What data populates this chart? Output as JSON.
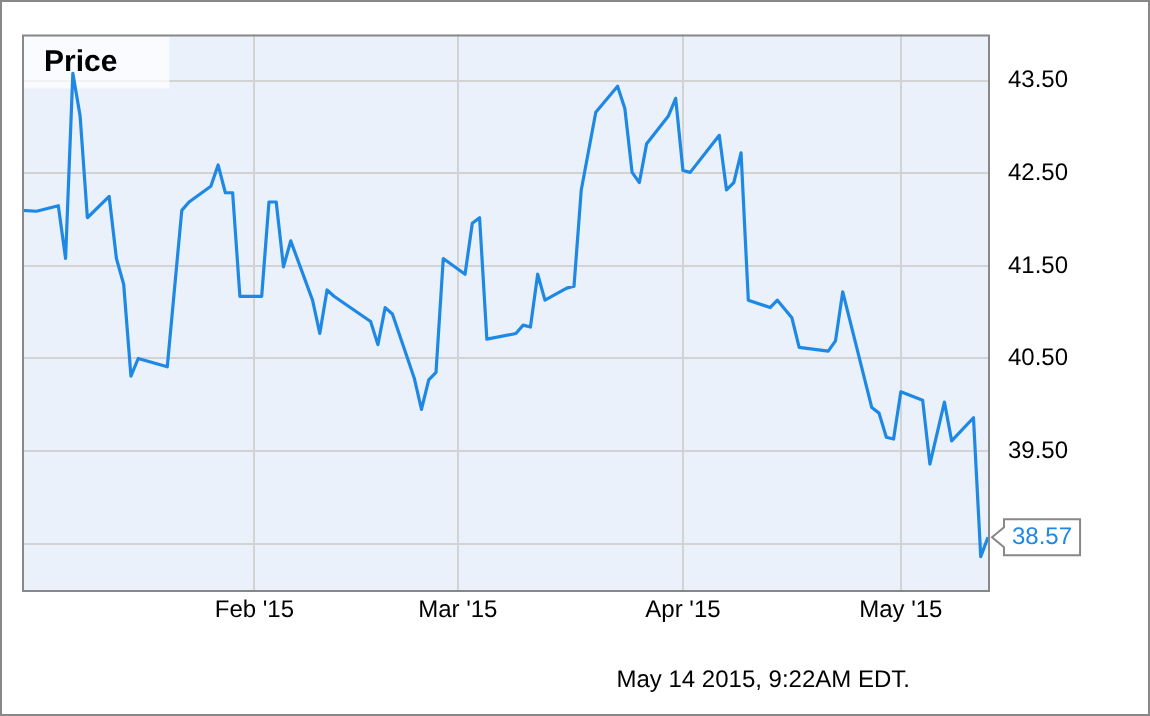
{
  "chart_data": {
    "type": "line",
    "title": "Price",
    "x": [
      "2014-12-31",
      "2015-01-02",
      "2015-01-05",
      "2015-01-06",
      "2015-01-07",
      "2015-01-08",
      "2015-01-09",
      "2015-01-12",
      "2015-01-13",
      "2015-01-14",
      "2015-01-15",
      "2015-01-16",
      "2015-01-20",
      "2015-01-22",
      "2015-01-23",
      "2015-01-26",
      "2015-01-27",
      "2015-01-28",
      "2015-01-29",
      "2015-01-30",
      "2015-02-02",
      "2015-02-03",
      "2015-02-04",
      "2015-02-05",
      "2015-02-06",
      "2015-02-09",
      "2015-02-10",
      "2015-02-11",
      "2015-02-12",
      "2015-02-17",
      "2015-02-18",
      "2015-02-19",
      "2015-02-20",
      "2015-02-23",
      "2015-02-24",
      "2015-02-25",
      "2015-02-26",
      "2015-02-27",
      "2015-03-02",
      "2015-03-03",
      "2015-03-04",
      "2015-03-05",
      "2015-03-09",
      "2015-03-10",
      "2015-03-11",
      "2015-03-12",
      "2015-03-13",
      "2015-03-16",
      "2015-03-17",
      "2015-03-18",
      "2015-03-20",
      "2015-03-23",
      "2015-03-24",
      "2015-03-25",
      "2015-03-26",
      "2015-03-27",
      "2015-03-30",
      "2015-03-31",
      "2015-04-01",
      "2015-04-02",
      "2015-04-06",
      "2015-04-07",
      "2015-04-08",
      "2015-04-09",
      "2015-04-10",
      "2015-04-13",
      "2015-04-14",
      "2015-04-16",
      "2015-04-17",
      "2015-04-21",
      "2015-04-22",
      "2015-04-23",
      "2015-04-27",
      "2015-04-28",
      "2015-04-29",
      "2015-04-30",
      "2015-05-01",
      "2015-05-04",
      "2015-05-05",
      "2015-05-07",
      "2015-05-08",
      "2015-05-11",
      "2015-05-12",
      "2015-05-13"
    ],
    "series": [
      {
        "color": "#1e88e5",
        "values": [
          42.1,
          42.09,
          42.15,
          41.58,
          43.58,
          43.12,
          42.02,
          42.25,
          41.58,
          41.3,
          40.31,
          40.5,
          40.41,
          42.1,
          42.19,
          42.36,
          42.59,
          42.29,
          42.29,
          41.17,
          41.17,
          42.19,
          42.19,
          41.49,
          41.77,
          41.13,
          40.77,
          41.24,
          41.17,
          40.9,
          40.65,
          41.05,
          40.98,
          40.29,
          39.95,
          40.27,
          40.35,
          41.58,
          41.41,
          41.96,
          42.02,
          40.71,
          40.77,
          40.86,
          40.84,
          41.41,
          41.13,
          41.26,
          41.28,
          42.32,
          43.16,
          43.44,
          43.2,
          42.51,
          42.4,
          42.82,
          43.12,
          43.31,
          42.53,
          42.51,
          42.91,
          42.32,
          42.4,
          42.72,
          41.13,
          41.05,
          41.13,
          40.94,
          40.62,
          40.58,
          40.69,
          41.22,
          39.97,
          39.91,
          39.65,
          39.63,
          40.14,
          40.05,
          39.36,
          40.03,
          39.61,
          39.86,
          38.36,
          38.57
        ],
        "value_labels": [
          null,
          null,
          null,
          null,
          null,
          null,
          null,
          null,
          null,
          null,
          null,
          null,
          null,
          null,
          null,
          null,
          null,
          null,
          null,
          null,
          null,
          null,
          null,
          null,
          null,
          null,
          null,
          null,
          null,
          null,
          null,
          null,
          null,
          null,
          null,
          null,
          null,
          null,
          null,
          null,
          null,
          null,
          null,
          null,
          null,
          null,
          null,
          null,
          null,
          null,
          null,
          null,
          null,
          null,
          null,
          null,
          null,
          null,
          null,
          null,
          null,
          null,
          null,
          null,
          null,
          null,
          null,
          null,
          null,
          null,
          null,
          null,
          null,
          null,
          null,
          null,
          null,
          null,
          null,
          null,
          null,
          null,
          null,
          "38.57"
        ]
      }
    ],
    "xlim": [
      "2014-12-31",
      "2015-05-13"
    ],
    "xticks": [
      {
        "value": "2015-02-01",
        "label": "Feb '15"
      },
      {
        "value": "2015-03-01",
        "label": "Mar '15"
      },
      {
        "value": "2015-04-01",
        "label": "Apr '15"
      },
      {
        "value": "2015-05-01",
        "label": "May '15"
      }
    ],
    "ylim": [
      38,
      44
    ],
    "yticks": [
      {
        "value": 38.5,
        "label": null
      },
      {
        "value": 39.5,
        "label": "39.50"
      },
      {
        "value": 40.5,
        "label": "40.50"
      },
      {
        "value": 41.5,
        "label": "41.50"
      },
      {
        "value": 42.5,
        "label": "42.50"
      },
      {
        "value": 43.5,
        "label": "43.50"
      }
    ],
    "grid": true,
    "legend": false,
    "marker": "none",
    "line_style": "solid",
    "annotations": [
      "May 14 2015, 9:22AM EDT."
    ]
  }
}
